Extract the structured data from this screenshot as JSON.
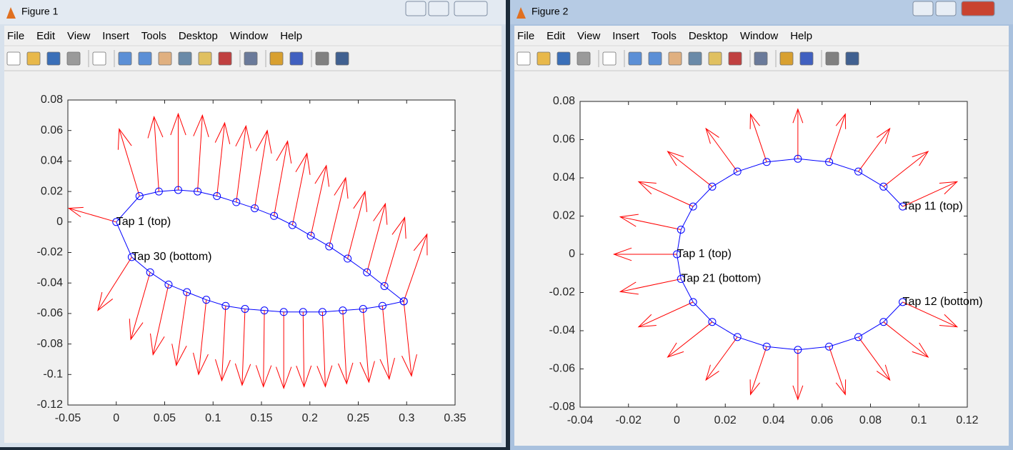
{
  "windows": [
    {
      "title": "Figure 1",
      "menu": [
        "File",
        "Edit",
        "View",
        "Insert",
        "Tools",
        "Desktop",
        "Window",
        "Help"
      ]
    },
    {
      "title": "Figure 2",
      "menu": [
        "File",
        "Edit",
        "View",
        "Insert",
        "Tools",
        "Desktop",
        "Window",
        "Help"
      ]
    }
  ],
  "chart_data": [
    {
      "type": "quiver",
      "closed": true,
      "line_color": "#0000ff",
      "marker_color": "#0000ff",
      "arrow_color": "#ff0000",
      "x": [
        0,
        0.024,
        0.044,
        0.064,
        0.084,
        0.104,
        0.124,
        0.143,
        0.163,
        0.182,
        0.201,
        0.22,
        0.239,
        0.259,
        0.277,
        0.297,
        0.297,
        0.275,
        0.255,
        0.234,
        0.213,
        0.193,
        0.173,
        0.153,
        0.133,
        0.113,
        0.093,
        0.073,
        0.054,
        0.035,
        0.016
      ],
      "y": [
        0,
        0.017,
        0.02,
        0.021,
        0.02,
        0.017,
        0.013,
        0.009,
        0.004,
        -0.002,
        -0.009,
        -0.016,
        -0.024,
        -0.033,
        -0.042,
        -0.052,
        -0.052,
        -0.055,
        -0.057,
        -0.058,
        -0.059,
        -0.059,
        -0.059,
        -0.058,
        -0.057,
        -0.055,
        -0.051,
        -0.046,
        -0.041,
        -0.033,
        -0.023
      ],
      "u": [
        -0.049,
        -0.021,
        -0.005,
        0,
        0.005,
        0.008,
        0.01,
        0.013,
        0.014,
        0.015,
        0.016,
        0.017,
        0.018,
        0.019,
        0.021,
        0.024,
        0.008,
        0.007,
        0.006,
        0.004,
        0.003,
        0.001,
        0,
        -0.001,
        -0.003,
        -0.004,
        -0.008,
        -0.011,
        -0.016,
        -0.02,
        -0.035
      ],
      "v": [
        0.009,
        0.044,
        0.049,
        0.05,
        0.05,
        0.048,
        0.05,
        0.051,
        0.049,
        0.047,
        0.046,
        0.045,
        0.044,
        0.045,
        0.045,
        0.044,
        -0.049,
        -0.048,
        -0.048,
        -0.048,
        -0.049,
        -0.049,
        -0.05,
        -0.05,
        -0.05,
        -0.049,
        -0.049,
        -0.048,
        -0.046,
        -0.044,
        -0.035
      ],
      "annotations": [
        {
          "text": "Tap 1 (top)",
          "x": 0,
          "y": 0
        },
        {
          "text": "Tap 30 (bottom)",
          "x": 0.016,
          "y": -0.023
        }
      ],
      "xlim": [
        -0.05,
        0.35
      ],
      "ylim": [
        -0.12,
        0.08
      ],
      "xticks": [
        -0.05,
        0,
        0.05,
        0.1,
        0.15,
        0.2,
        0.25,
        0.3,
        0.35
      ],
      "yticks": [
        -0.12,
        -0.1,
        -0.08,
        -0.06,
        -0.04,
        -0.02,
        0,
        0.02,
        0.04,
        0.06,
        0.08
      ]
    },
    {
      "type": "quiver",
      "closed": false,
      "line_color": "#0000ff",
      "marker_color": "#0000ff",
      "arrow_color": "#ff0000",
      "x": [
        0.0933,
        0.0854,
        0.075,
        0.0629,
        0.05,
        0.0371,
        0.025,
        0.0146,
        0.0067,
        0.0017,
        0,
        0.0017,
        0.0067,
        0.0146,
        0.025,
        0.0371,
        0.05,
        0.0629,
        0.075,
        0.0854,
        0.0933
      ],
      "y": [
        -0.025,
        -0.0354,
        -0.0433,
        -0.0483,
        -0.05,
        -0.0483,
        -0.0433,
        -0.0354,
        -0.025,
        -0.0129,
        0,
        0.0129,
        0.025,
        0.0354,
        0.0433,
        0.0483,
        0.05,
        0.0483,
        0.0433,
        0.0354,
        0.025
      ],
      "u": [
        0.0225,
        0.0184,
        0.013,
        0.0067,
        0,
        -0.0067,
        -0.013,
        -0.0184,
        -0.0225,
        -0.0251,
        -0.026,
        -0.0251,
        -0.0225,
        -0.0184,
        -0.013,
        -0.0067,
        0,
        0.0067,
        0.013,
        0.0184,
        0.0225
      ],
      "v": [
        -0.013,
        -0.0184,
        -0.0225,
        -0.0251,
        -0.026,
        -0.0251,
        -0.0225,
        -0.0184,
        -0.013,
        -0.0067,
        0,
        0.0067,
        0.013,
        0.0184,
        0.0225,
        0.0251,
        0.026,
        0.0251,
        0.0225,
        0.0184,
        0.013
      ],
      "annotations": [
        {
          "text": "Tap 1 (top)",
          "x": 0,
          "y": 0
        },
        {
          "text": "Tap 11 (top)",
          "x": 0.0933,
          "y": 0.025
        },
        {
          "text": "Tap 21 (bottom)",
          "x": 0.0017,
          "y": -0.0129
        },
        {
          "text": "Tap 12 (bottom)",
          "x": 0.0933,
          "y": -0.025
        }
      ],
      "xlim": [
        -0.04,
        0.12
      ],
      "ylim": [
        -0.08,
        0.08
      ],
      "xticks": [
        -0.04,
        -0.02,
        0,
        0.02,
        0.04,
        0.06,
        0.08,
        0.1,
        0.12
      ],
      "yticks": [
        -0.08,
        -0.06,
        -0.04,
        -0.02,
        0,
        0.02,
        0.04,
        0.06,
        0.08
      ]
    }
  ]
}
